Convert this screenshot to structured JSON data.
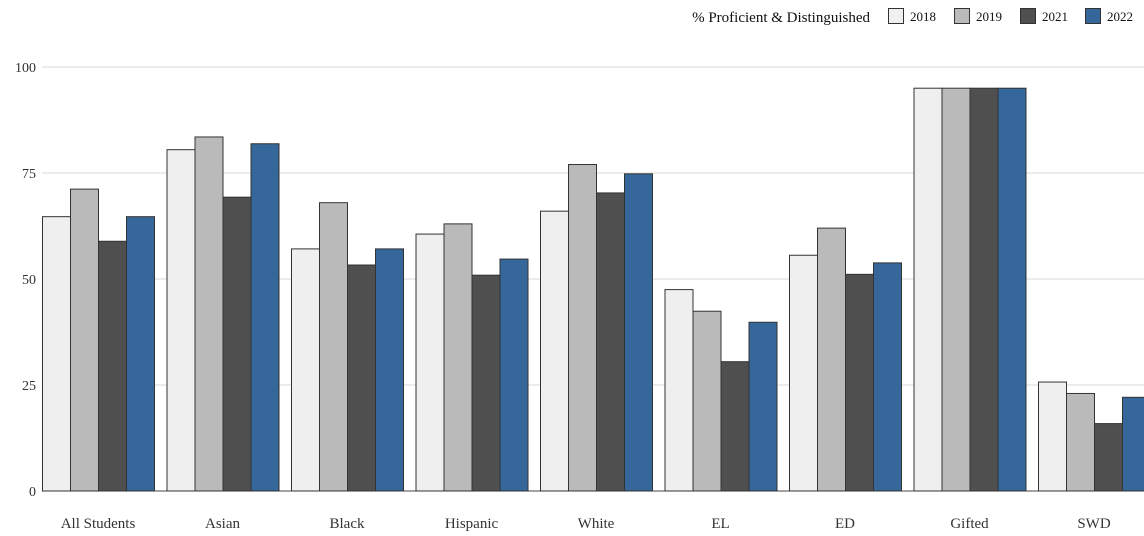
{
  "chart_data": {
    "type": "bar",
    "legend_title": "% Proficient & Distinguished",
    "legend_position": "top-right",
    "categories": [
      "All Students",
      "Asian",
      "Black",
      "Hispanic",
      "White",
      "EL",
      "ED",
      "Gifted",
      "SWD"
    ],
    "series": [
      {
        "name": "2018",
        "color": "#efefef",
        "values": [
          64.7,
          80.5,
          57.1,
          60.6,
          66.0,
          47.5,
          55.6,
          95.0,
          25.7
        ]
      },
      {
        "name": "2019",
        "color": "#bababa",
        "values": [
          71.2,
          83.5,
          68.0,
          63.0,
          77.0,
          42.4,
          62.0,
          95.0,
          23.0
        ]
      },
      {
        "name": "2021",
        "color": "#4f4f4f",
        "values": [
          58.9,
          69.3,
          53.3,
          50.9,
          70.3,
          30.5,
          51.1,
          95.0,
          15.9
        ]
      },
      {
        "name": "2022",
        "color": "#35679a",
        "values": [
          64.7,
          81.9,
          57.1,
          54.7,
          74.8,
          39.8,
          53.8,
          95.0,
          22.1
        ]
      }
    ],
    "ylim": [
      0,
      100
    ],
    "yticks": [
      0,
      25,
      50,
      75,
      100
    ],
    "grid": true
  }
}
